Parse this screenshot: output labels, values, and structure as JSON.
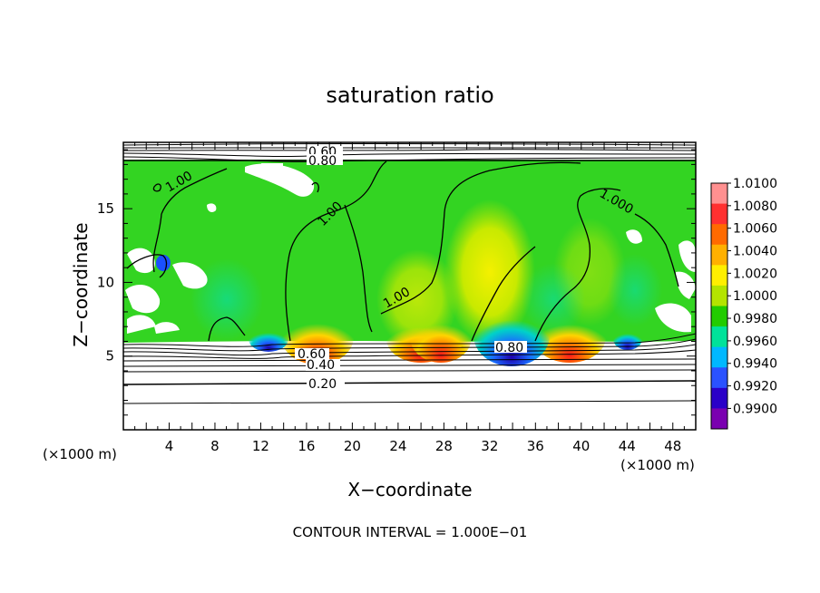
{
  "chart_data": {
    "type": "heatmap",
    "title": "saturation ratio",
    "xlabel": "X−coordinate",
    "ylabel": "Z−coordinate",
    "x_unit": "(×1000 m)",
    "y_unit": "(×1000 m)",
    "xlim": [
      0,
      50
    ],
    "ylim": [
      0,
      19.5
    ],
    "xticks": [
      4,
      8,
      12,
      16,
      20,
      24,
      28,
      32,
      36,
      40,
      44,
      48
    ],
    "yticks": [
      5,
      10,
      15
    ],
    "footer": "CONTOUR INTERVAL = 1.000E−01",
    "colorbar": {
      "levels": [
        "1.0100",
        "1.0080",
        "1.0060",
        "1.0040",
        "1.0020",
        "1.0000",
        "0.9980",
        "0.9960",
        "0.9940",
        "0.9920",
        "0.9900"
      ],
      "colors": [
        "#ff9090",
        "#ff3030",
        "#ff6a00",
        "#ffb000",
        "#ffef00",
        "#b4e400",
        "#22cc00",
        "#00e29a",
        "#00b8ff",
        "#2a52ff",
        "#2a00c8",
        "#7a00b0"
      ]
    },
    "contour_labels": [
      "0.60",
      "0.80",
      "1.00",
      "1.00",
      "1.000",
      "1.00",
      "0.80",
      "0.60",
      "0.40",
      "0.20"
    ],
    "colors": {
      "background_field": "#33d422",
      "saturated_white": "#ffffff",
      "contour_line": "#000000"
    }
  }
}
